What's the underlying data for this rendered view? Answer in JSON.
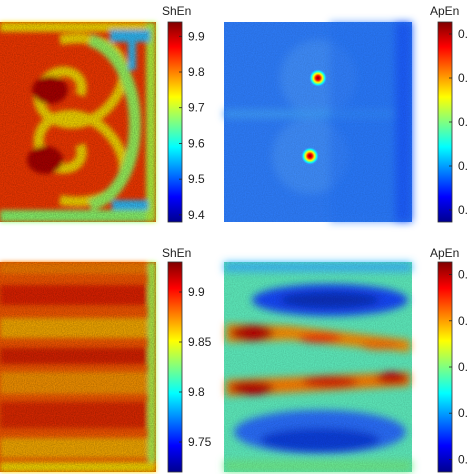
{
  "chart_data": [
    {
      "type": "heatmap",
      "panel": "top-left",
      "colorbar_label": "ShEn",
      "colorbar_ticks": [
        "9.9",
        "9.8",
        "9.7",
        "9.6",
        "9.5",
        "9.4"
      ],
      "colorbar_values": [
        9.9,
        9.8,
        9.7,
        9.6,
        9.5,
        9.4
      ],
      "colorbar_range": [
        9.38,
        9.94
      ],
      "colormap": "jet",
      "pattern": "two counter-rotating vortices on the left half, low-entropy outer boundary"
    },
    {
      "type": "heatmap",
      "panel": "top-right",
      "colorbar_label": "ApEn",
      "colorbar_ticks": [
        "0.",
        "0.",
        "0.",
        "0.",
        "0."
      ],
      "colormap": "jet",
      "pattern": "mostly low background with two high-value point sources"
    },
    {
      "type": "heatmap",
      "panel": "bottom-left",
      "colorbar_label": "ShEn",
      "colorbar_ticks": [
        "9.9",
        "9.85",
        "9.8",
        "9.75"
      ],
      "colorbar_values": [
        9.9,
        9.85,
        9.8,
        9.75
      ],
      "colorbar_range": [
        9.72,
        9.93
      ],
      "colormap": "jet",
      "pattern": "noisy high values with faint horizontal bands"
    },
    {
      "type": "heatmap",
      "panel": "bottom-right",
      "colorbar_label": "ApEn",
      "colorbar_ticks": [
        "0.",
        "0.",
        "0.",
        "0.",
        "0."
      ],
      "colormap": "jet",
      "pattern": "two high horizontal streaks, low bands above and below"
    }
  ],
  "colors": {
    "jet_low": "#00008f",
    "jet_mid": "#80ff80",
    "jet_high": "#800000"
  }
}
